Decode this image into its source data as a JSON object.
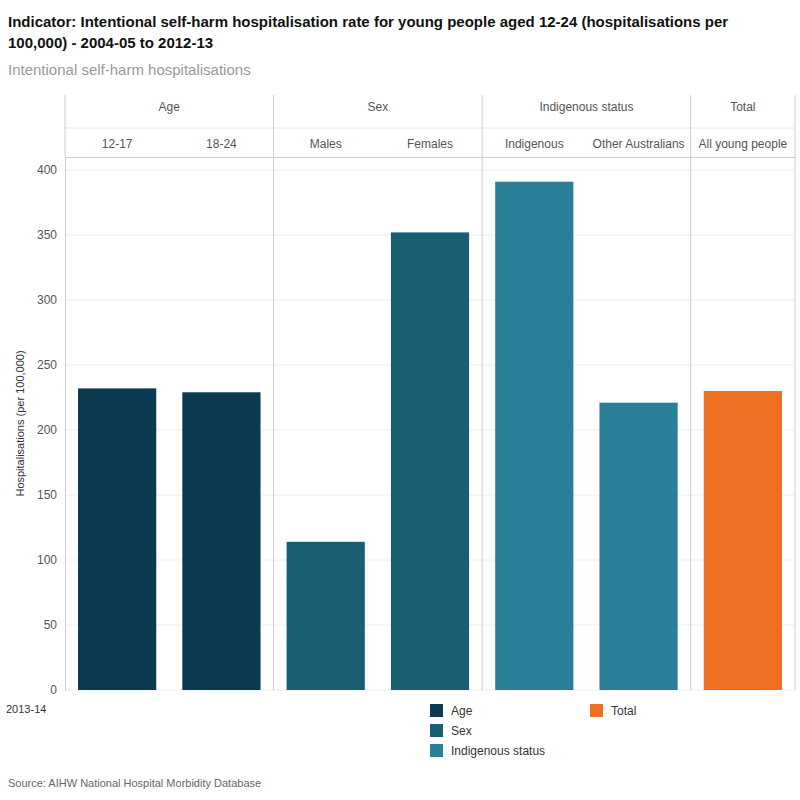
{
  "chart_data": {
    "type": "bar",
    "title": "Indicator: Intentional self-harm hospitalisation rate for young people aged 12-24 (hospitalisations per 100,000) - 2004-05 to 2012-13",
    "subtitle": "Intentional self-harm hospitalisations",
    "y_label": "Hospitalisations (per 100,000)",
    "annotation": "2013-14",
    "source": "Source: AIHW National Hospital Morbidity Database",
    "series": [
      {
        "name": "Age",
        "color": "#0b3a52",
        "categories": [
          "12-17",
          "18-24"
        ],
        "values": [
          232,
          229
        ]
      },
      {
        "name": "Sex",
        "color": "#1a5e74",
        "categories": [
          "Males",
          "Females"
        ],
        "values": [
          114,
          352
        ]
      },
      {
        "name": "Indigenous status",
        "color": "#2a7f99",
        "categories": [
          "Indigenous",
          "Other Australians"
        ],
        "values": [
          391,
          221
        ]
      },
      {
        "name": "Total",
        "color": "#f07023",
        "categories": [
          "All young people"
        ],
        "values": [
          230
        ]
      }
    ],
    "ylim": [
      0,
      410
    ],
    "yticks": [
      0,
      50,
      100,
      150,
      200,
      250,
      300,
      350,
      400
    ],
    "grid": true,
    "legend": "bottom",
    "tick_labels": true
  }
}
